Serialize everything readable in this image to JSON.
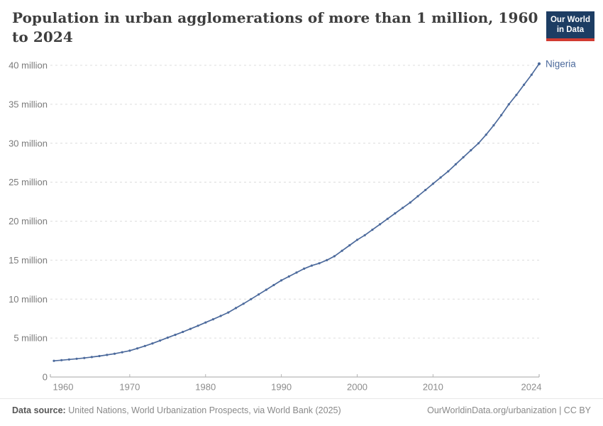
{
  "header": {
    "title": "Population in urban agglomerations of more than 1 million, 1960 to 2024",
    "logo": {
      "line1": "Our World",
      "line2": "in Data"
    }
  },
  "chart_data": {
    "type": "line",
    "title": "Population in urban agglomerations of more than 1 million, 1960 to 2024",
    "xlabel": "",
    "ylabel": "",
    "unit": "million people",
    "xlim": [
      1959.5,
      2024
    ],
    "ylim": [
      0,
      40
    ],
    "grid": "horizontal-dashed",
    "legend_position": "end-of-line-label",
    "x": [
      1960,
      1961,
      1962,
      1963,
      1964,
      1965,
      1966,
      1967,
      1968,
      1969,
      1970,
      1971,
      1972,
      1973,
      1974,
      1975,
      1976,
      1977,
      1978,
      1979,
      1980,
      1981,
      1982,
      1983,
      1984,
      1985,
      1986,
      1987,
      1988,
      1989,
      1990,
      1991,
      1992,
      1993,
      1994,
      1995,
      1996,
      1997,
      1998,
      1999,
      2000,
      2001,
      2002,
      2003,
      2004,
      2005,
      2006,
      2007,
      2008,
      2009,
      2010,
      2011,
      2012,
      2013,
      2014,
      2015,
      2016,
      2017,
      2018,
      2019,
      2020,
      2021,
      2022,
      2023,
      2024
    ],
    "series": [
      {
        "name": "Nigeria",
        "color": "#4c6a9c",
        "values": [
          2.08,
          2.16,
          2.25,
          2.34,
          2.44,
          2.56,
          2.69,
          2.83,
          2.99,
          3.18,
          3.38,
          3.67,
          3.98,
          4.31,
          4.67,
          5.05,
          5.41,
          5.79,
          6.18,
          6.58,
          7.0,
          7.41,
          7.84,
          8.28,
          8.85,
          9.4,
          10.0,
          10.6,
          11.2,
          11.8,
          12.4,
          12.9,
          13.4,
          13.9,
          14.3,
          14.6,
          15.0,
          15.5,
          16.2,
          16.9,
          17.6,
          18.2,
          18.9,
          19.6,
          20.3,
          21.0,
          21.7,
          22.4,
          23.2,
          24.0,
          24.8,
          25.6,
          26.4,
          27.3,
          28.2,
          29.1,
          30.0,
          31.1,
          32.3,
          33.6,
          35.0,
          36.2,
          37.5,
          38.8,
          40.2
        ]
      }
    ],
    "y_ticks": [
      {
        "value": 0,
        "label": "0"
      },
      {
        "value": 5,
        "label": "5 million"
      },
      {
        "value": 10,
        "label": "10 million"
      },
      {
        "value": 15,
        "label": "15 million"
      },
      {
        "value": 20,
        "label": "20 million"
      },
      {
        "value": 25,
        "label": "25 million"
      },
      {
        "value": 30,
        "label": "30 million"
      },
      {
        "value": 35,
        "label": "35 million"
      },
      {
        "value": 40,
        "label": "40 million"
      }
    ],
    "x_ticks": [
      {
        "value": 1960,
        "label": "1960"
      },
      {
        "value": 1970,
        "label": "1970"
      },
      {
        "value": 1980,
        "label": "1980"
      },
      {
        "value": 1990,
        "label": "1990"
      },
      {
        "value": 2000,
        "label": "2000"
      },
      {
        "value": 2010,
        "label": "2010"
      },
      {
        "value": 2024,
        "label": "2024"
      }
    ]
  },
  "colors": {
    "line": "#4c6a9c",
    "logo_bg": "#1d3d63",
    "logo_accent": "#d13b31",
    "gridline": "#dcdcdc",
    "axis": "#a6a6a6",
    "title_text": "#3e3e3e"
  },
  "footer": {
    "source_label": "Data source:",
    "source_text": "United Nations, World Urbanization Prospects, via World Bank (2025)",
    "credit": "OurWorldinData.org/urbanization | CC BY"
  }
}
